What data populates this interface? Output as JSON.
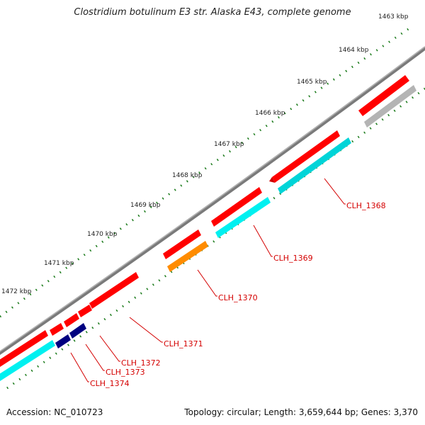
{
  "title": "Clostridium botulinum E3 str. Alaska E43, complete genome",
  "footer": {
    "accession": "Accession: NC_010723",
    "summary": "Topology: circular; Length: 3,659,644 bp; Genes: 3,370"
  },
  "ticks": [
    "1463 kbp",
    "1464 kbp",
    "1465 kbp",
    "1466 kbp",
    "1467 kbp",
    "1468 kbp",
    "1469 kbp",
    "1470 kbp",
    "1471 kbp",
    "1472 kbp"
  ],
  "genes": [
    "CLH_1368",
    "CLH_1369",
    "CLH_1370",
    "CLH_1371",
    "CLH_1372",
    "CLH_1373",
    "CLH_1374"
  ],
  "colors": {
    "gene": "#ff0000",
    "cds_default": "#00e5ee",
    "cds_orange": "#ff8c00",
    "cds_navy": "#000080",
    "cds_gray": "#b4b4b4",
    "backbone": "#777777",
    "ticks": "#1a7a1a",
    "label": "#d40000"
  }
}
